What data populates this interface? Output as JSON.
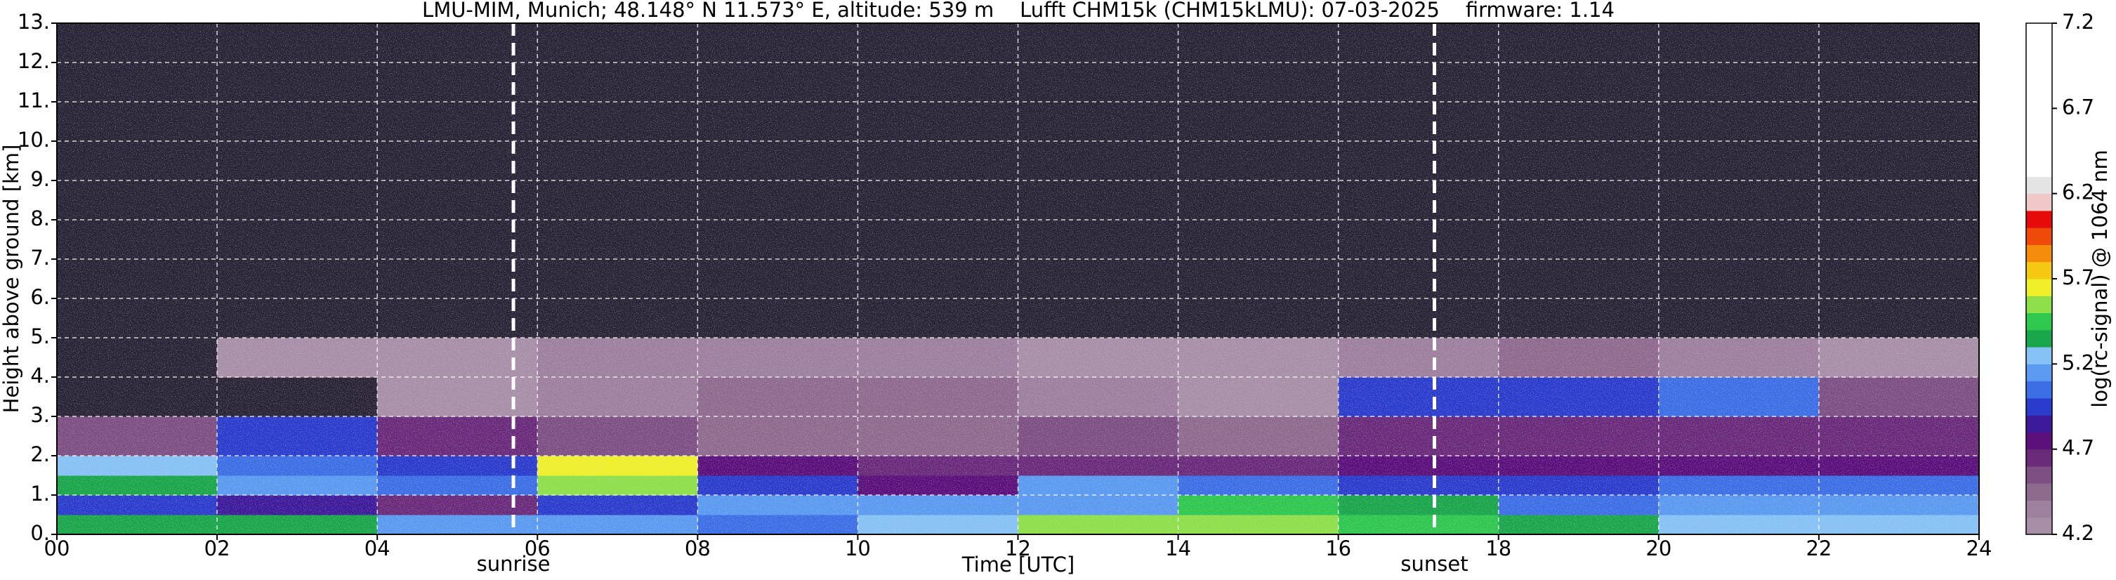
{
  "chart_data": {
    "type": "heatmap",
    "title": "LMU-MIM, Munich; 48.148° N 11.573° E, altitude: 539 m    Lufft CHM15k (CHM15kLMU): 07-03-2025    firmware: 1.14",
    "xlabel": "Time [UTC]",
    "ylabel": "Height above ground [km]",
    "colorbar_label": "log(rc-signal) @ 1064 nm",
    "xlim": [
      0,
      24
    ],
    "xticks": [
      {
        "value": 0,
        "label": "00"
      },
      {
        "value": 2,
        "label": "02"
      },
      {
        "value": 4,
        "label": "04"
      },
      {
        "value": 6,
        "label": "06"
      },
      {
        "value": 8,
        "label": "08"
      },
      10,
      12,
      14,
      16,
      18,
      20,
      22,
      24
    ],
    "ylim": [
      0,
      13
    ],
    "yticks": [
      {
        "value": 0,
        "label": "0."
      },
      {
        "value": 1,
        "label": "1."
      },
      {
        "value": 2,
        "label": "2."
      },
      {
        "value": 3,
        "label": "3."
      },
      {
        "value": 4,
        "label": "4."
      },
      {
        "value": 5,
        "label": "5."
      },
      {
        "value": 6,
        "label": "6."
      },
      {
        "value": 7,
        "label": "7."
      },
      {
        "value": 8,
        "label": "8."
      },
      {
        "value": 9,
        "label": "9."
      },
      {
        "value": 10,
        "label": "10."
      },
      {
        "value": 11,
        "label": "11."
      },
      {
        "value": 12,
        "label": "12."
      },
      {
        "value": 13,
        "label": "13."
      }
    ],
    "grid": true,
    "clim": [
      4.2,
      7.2
    ],
    "cticks": [
      4.2,
      4.7,
      5.2,
      5.7,
      6.2,
      6.7,
      7.2
    ],
    "under_color": "#2a2336",
    "colors": [
      "#a88fa8",
      "#9e7f9e",
      "#8f6a8f",
      "#7d4f82",
      "#6a2a7a",
      "#5a0f7a",
      "#3c1a9a",
      "#2a3ccc",
      "#3c6ee6",
      "#5a9af0",
      "#86c2f5",
      "#1aa64a",
      "#2ec84e",
      "#8ee04a",
      "#f0f02a",
      "#f5c814",
      "#f58c0a",
      "#f04a0a",
      "#e60a0a",
      "#f0c8c8",
      "#e4e4e4",
      "#ffffff",
      "#ffffff",
      "#ffffff",
      "#ffffff",
      "#ffffff",
      "#ffffff",
      "#ffffff",
      "#ffffff",
      "#ffffff"
    ],
    "x_edges": [
      0,
      2,
      4,
      6,
      8,
      10,
      12,
      14,
      16,
      18,
      20,
      22,
      24
    ],
    "y_edges": [
      0,
      0.5,
      1,
      1.5,
      2,
      3,
      4,
      5,
      7,
      9,
      13
    ],
    "z": [
      [
        5.3,
        5.3,
        5.1,
        5.1,
        5.0,
        5.2,
        5.5,
        5.5,
        5.4,
        5.3,
        5.2,
        5.2
      ],
      [
        4.9,
        4.8,
        4.6,
        4.9,
        5.1,
        5.1,
        5.1,
        5.4,
        5.3,
        5.0,
        5.1,
        5.1
      ],
      [
        5.3,
        5.1,
        5.0,
        5.5,
        4.9,
        4.7,
        5.1,
        5.0,
        4.9,
        4.9,
        5.0,
        5.0
      ],
      [
        5.2,
        5.0,
        4.9,
        5.6,
        4.7,
        4.6,
        4.6,
        4.6,
        4.7,
        4.7,
        4.7,
        4.7
      ],
      [
        4.5,
        4.9,
        4.6,
        4.5,
        4.4,
        4.4,
        4.5,
        4.4,
        4.6,
        4.6,
        4.6,
        4.6
      ],
      [
        4.1,
        4.1,
        4.2,
        4.3,
        4.4,
        4.4,
        4.3,
        4.2,
        4.9,
        4.9,
        5.0,
        4.5
      ],
      [
        4.1,
        4.2,
        4.2,
        4.3,
        4.3,
        4.3,
        4.2,
        4.2,
        4.3,
        4.4,
        4.3,
        4.2
      ],
      [
        4.0,
        4.0,
        4.0,
        4.1,
        4.1,
        4.1,
        4.1,
        4.0,
        4.0,
        4.0,
        4.0,
        4.0
      ],
      [
        4.0,
        4.0,
        4.0,
        4.0,
        4.0,
        4.0,
        4.0,
        4.0,
        4.0,
        4.0,
        4.0,
        4.0
      ],
      [
        4.0,
        4.0,
        4.0,
        4.0,
        4.0,
        4.0,
        4.0,
        4.0,
        4.0,
        4.0,
        4.0,
        4.0
      ]
    ],
    "annotations": [
      {
        "text": "sunrise",
        "x": 5.7
      },
      {
        "text": "sunset",
        "x": 17.2
      }
    ]
  }
}
